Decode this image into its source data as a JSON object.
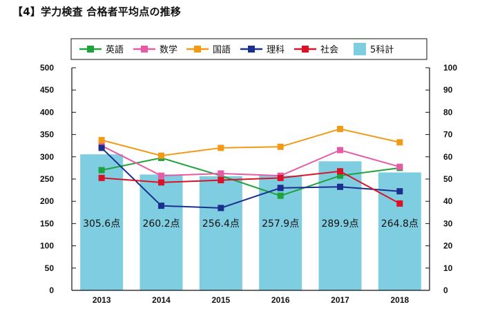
{
  "title": "【4】学力検査 合格者平均点の推移",
  "chart_data": {
    "type": "bar",
    "categories": [
      "2013",
      "2014",
      "2015",
      "2016",
      "2017",
      "2018"
    ],
    "bar_series": {
      "name": "5科計",
      "values": [
        305.6,
        260.2,
        256.4,
        257.9,
        289.9,
        264.8
      ],
      "labels": [
        "305.6点",
        "260.2点",
        "256.4点",
        "257.9点",
        "289.9点",
        "264.8点"
      ],
      "color": "#7fcde0",
      "axis": "left"
    },
    "line_series": [
      {
        "name": "英語",
        "values": [
          54,
          59.5,
          51.5,
          42.5,
          51.5,
          55
        ],
        "color": "#1fa23c",
        "axis": "right"
      },
      {
        "name": "数学",
        "values": [
          65,
          51.5,
          52.5,
          51.5,
          63,
          55.5
        ],
        "color": "#e75aa6",
        "axis": "right"
      },
      {
        "name": "国語",
        "values": [
          67.5,
          60.5,
          64,
          64.5,
          72.5,
          66.5
        ],
        "color": "#f29a16",
        "axis": "right"
      },
      {
        "name": "理科",
        "values": [
          64,
          38,
          37,
          46,
          46.5,
          44.5
        ],
        "color": "#1b2f8e",
        "axis": "right"
      },
      {
        "name": "社会",
        "values": [
          50.5,
          48.5,
          49.5,
          50.5,
          53.5,
          39
        ],
        "color": "#d9122a",
        "axis": "right"
      }
    ],
    "legend_order": [
      "英語",
      "数学",
      "国語",
      "理科",
      "社会",
      "5科計"
    ],
    "legend_position": "top-center",
    "left_axis": {
      "range": [
        0,
        500
      ],
      "ticks": [
        "0",
        "50",
        "100",
        "150",
        "200",
        "250",
        "300",
        "350",
        "400",
        "450",
        "500"
      ]
    },
    "right_axis": {
      "range": [
        0,
        100
      ],
      "ticks": [
        "0",
        "10",
        "20",
        "30",
        "40",
        "50",
        "60",
        "70",
        "80",
        "90",
        "100"
      ]
    },
    "grid": false
  }
}
